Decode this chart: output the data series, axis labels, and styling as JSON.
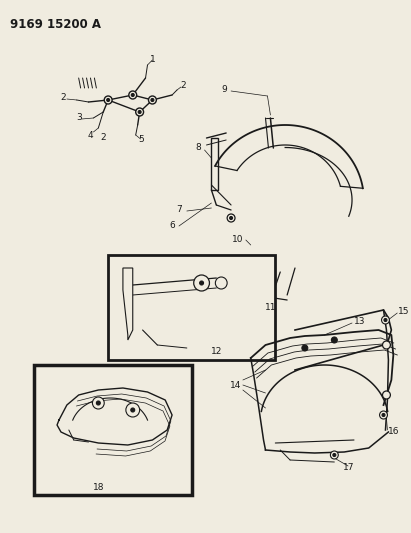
{
  "title": "9169 15200 A",
  "bg_color": "#f0ece0",
  "line_color": "#1a1a1a",
  "title_fontsize": 8.5,
  "label_fontsize": 6.5,
  "fig_width": 4.11,
  "fig_height": 5.33,
  "dpi": 100
}
